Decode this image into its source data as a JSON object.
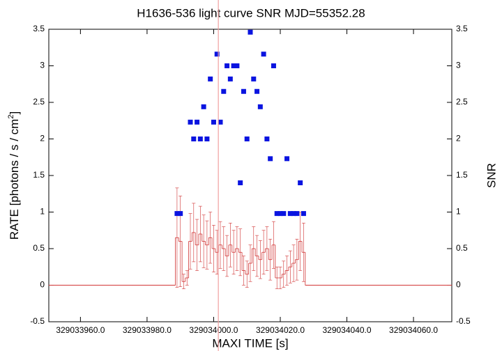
{
  "chart_data": {
    "type": "lightcurve",
    "title": "H1636-536 light curve  SNR MJD=55352.28",
    "xlabel": "MAXI TIME [s]",
    "ylabel": "RATE [photons / s / cm",
    "ylabel_sup": "2",
    "ylabel_end": "]",
    "y2label": "SNR",
    "xlim": [
      329033950.5,
      329034071.5
    ],
    "xticks": [
      {
        "value": 329033960,
        "label": "329033960.0"
      },
      {
        "value": 329033980,
        "label": "329033980.0"
      },
      {
        "value": 329034000,
        "label": "329034000.0"
      },
      {
        "value": 329034020,
        "label": "329034020.0"
      },
      {
        "value": 329034040,
        "label": "329034040.0"
      },
      {
        "value": 329034060,
        "label": "329034060.0"
      }
    ],
    "ylim": [
      -0.5,
      3.5
    ],
    "yticks": [
      -0.5,
      0,
      0.5,
      1,
      1.5,
      2,
      2.5,
      3,
      3.5
    ],
    "y2lim": [
      -0.5,
      3.5
    ],
    "y2ticks": [
      -0.5,
      0,
      0.5,
      1,
      1.5,
      2,
      2.5,
      3,
      3.5
    ],
    "vline": 329034001.4,
    "vline_color": "#f0a0a0",
    "x": [
      329033951,
      329033952,
      329033953,
      329033954,
      329033955,
      329033956,
      329033957,
      329033958,
      329033959,
      329033960,
      329033961,
      329033962,
      329033963,
      329033964,
      329033965,
      329033966,
      329033967,
      329033968,
      329033969,
      329033970,
      329033971,
      329033972,
      329033973,
      329033974,
      329033975,
      329033976,
      329033977,
      329033978,
      329033979,
      329033980,
      329033981,
      329033982,
      329033983,
      329033984,
      329033985,
      329033986,
      329033987,
      329033988,
      329033989,
      329033990,
      329033991,
      329033992,
      329033993,
      329033994,
      329033995,
      329033996,
      329033997,
      329033998,
      329033999,
      329034000,
      329034001,
      329034002,
      329034003,
      329034004,
      329034005,
      329034006,
      329034007,
      329034008,
      329034009,
      329034010,
      329034011,
      329034012,
      329034013,
      329034014,
      329034015,
      329034016,
      329034017,
      329034018,
      329034019,
      329034020,
      329034021,
      329034022,
      329034023,
      329034024,
      329034025,
      329034026,
      329034027,
      329034028,
      329034029,
      329034030,
      329034031,
      329034032,
      329034033,
      329034034,
      329034035,
      329034036,
      329034037,
      329034038,
      329034039,
      329034040,
      329034041,
      329034042,
      329034043,
      329034044,
      329034045,
      329034046,
      329034047,
      329034048,
      329034049,
      329034050,
      329034051,
      329034052,
      329034053,
      329034054,
      329034055,
      329034056,
      329034057,
      329034058,
      329034059,
      329034060,
      329034061,
      329034062,
      329034063,
      329034064,
      329034065,
      329034066,
      329034067,
      329034068,
      329034069,
      329034070,
      329034071
    ],
    "series": [
      {
        "name": "RATE",
        "color": "#d03030",
        "values": [
          0,
          0,
          0,
          0,
          0,
          0,
          0,
          0,
          0,
          0,
          0,
          0,
          0,
          0,
          0,
          0,
          0,
          0,
          0,
          0,
          0,
          0,
          0,
          0,
          0,
          0,
          0,
          0,
          0,
          0,
          0,
          0,
          0,
          0,
          0,
          0,
          0,
          0,
          0.65,
          0.6,
          0.05,
          0.1,
          0.6,
          0.72,
          0.55,
          0.7,
          0.6,
          0.55,
          0.65,
          0.5,
          0.45,
          0.55,
          0.5,
          0.4,
          0.55,
          0.45,
          0.5,
          0.45,
          0.2,
          0.15,
          0.3,
          0.5,
          0.4,
          0.35,
          0.45,
          0.5,
          0.35,
          0.55,
          0.1,
          0.1,
          0.15,
          0.2,
          0.25,
          0.3,
          0.35,
          0.6,
          0.45,
          0,
          0,
          0,
          0,
          0,
          0,
          0,
          0,
          0,
          0,
          0,
          0,
          0,
          0,
          0,
          0,
          0,
          0,
          0,
          0,
          0,
          0,
          0,
          0,
          0,
          0,
          0,
          0,
          0,
          0,
          0,
          0,
          0,
          0,
          0,
          0,
          0,
          0,
          0,
          0,
          0,
          0,
          0,
          0
        ],
        "errors": [
          0,
          0,
          0,
          0,
          0,
          0,
          0,
          0,
          0,
          0,
          0,
          0,
          0,
          0,
          0,
          0,
          0,
          0,
          0,
          0,
          0,
          0,
          0,
          0,
          0,
          0,
          0,
          0,
          0,
          0,
          0,
          0,
          0,
          0,
          0,
          0,
          0,
          0,
          0.68,
          0.62,
          0.1,
          0.1,
          0.38,
          0.4,
          0.35,
          0.38,
          0.36,
          0.33,
          0.35,
          0.32,
          0.3,
          0.32,
          0.3,
          0.28,
          0.3,
          0.3,
          0.3,
          0.32,
          0.2,
          0.18,
          0.25,
          0.3,
          0.28,
          0.26,
          0.3,
          0.3,
          0.28,
          0.32,
          0.15,
          0.15,
          0.18,
          0.2,
          0.22,
          0.25,
          0.28,
          0.4,
          0.4,
          0,
          0,
          0,
          0,
          0,
          0,
          0,
          0,
          0,
          0,
          0,
          0,
          0,
          0,
          0,
          0,
          0,
          0,
          0,
          0,
          0,
          0,
          0,
          0,
          0,
          0,
          0,
          0,
          0,
          0,
          0,
          0,
          0,
          0,
          0,
          0,
          0,
          0,
          0,
          0,
          0,
          0,
          0,
          0
        ]
      },
      {
        "name": "SNR",
        "color": "#0a14e0",
        "axis": "y2",
        "values": [
          null,
          null,
          null,
          null,
          null,
          null,
          null,
          null,
          null,
          null,
          null,
          null,
          null,
          null,
          null,
          null,
          null,
          null,
          null,
          null,
          null,
          null,
          null,
          null,
          null,
          null,
          null,
          null,
          null,
          null,
          null,
          null,
          null,
          null,
          null,
          null,
          null,
          null,
          0.98,
          0.98,
          null,
          null,
          2.23,
          2.0,
          2.23,
          2.0,
          2.44,
          2.0,
          2.82,
          2.23,
          3.16,
          2.23,
          2.65,
          3.0,
          2.82,
          3.0,
          3.0,
          1.4,
          2.65,
          2.0,
          3.46,
          2.82,
          2.65,
          2.44,
          3.16,
          2.0,
          1.73,
          3.0,
          0.98,
          0.98,
          0.98,
          1.73,
          0.98,
          0.98,
          0.98,
          1.4,
          0.98,
          null,
          null,
          null,
          null,
          null,
          null,
          null,
          null,
          null,
          null,
          null,
          null,
          null,
          null,
          null,
          null,
          null,
          null,
          null,
          null,
          null,
          null,
          null,
          null,
          null,
          null,
          null,
          null,
          null,
          null,
          null,
          null,
          null,
          null,
          null,
          null,
          null,
          null,
          null,
          null,
          null,
          null,
          null,
          null
        ]
      }
    ]
  }
}
